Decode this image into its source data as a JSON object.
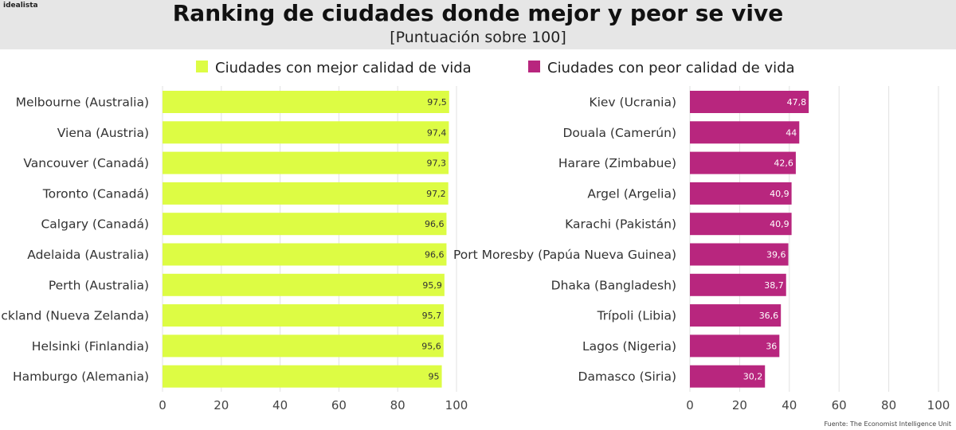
{
  "brand": "idealista",
  "title": "Ranking de ciudades donde mejor y peor se vive",
  "subtitle": "[Puntuación sobre 100]",
  "source": "Fuente: The Economist Intelligence Unit",
  "chart_data": [
    {
      "type": "bar",
      "orientation": "horizontal",
      "legend": "Ciudades con mejor calidad de vida",
      "color": "#ddfc44",
      "label_color": "#333333",
      "categories": [
        "Melbourne (Australia)",
        "Viena (Austria)",
        "Vancouver (Canadá)",
        "Toronto (Canadá)",
        "Calgary (Canadá)",
        "Adelaida (Australia)",
        "Perth (Australia)",
        "Auckland (Nueva Zelanda)",
        "Helsinki (Finlandia)",
        "Hamburgo (Alemania)"
      ],
      "values": [
        97.5,
        97.4,
        97.3,
        97.2,
        96.6,
        96.6,
        95.9,
        95.7,
        95.6,
        95
      ],
      "value_labels": [
        "97,5",
        "97,4",
        "97,3",
        "97,2",
        "96,6",
        "96,6",
        "95,9",
        "95,7",
        "95,6",
        "95"
      ],
      "xlim": [
        0,
        100
      ],
      "xticks": [
        0,
        20,
        40,
        60,
        80,
        100
      ],
      "grid": true
    },
    {
      "type": "bar",
      "orientation": "horizontal",
      "legend": "Ciudades con peor calidad de vida",
      "color": "#b8267e",
      "label_color": "#ffffff",
      "categories": [
        "Kiev (Ucrania)",
        "Douala (Camerún)",
        "Harare (Zimbabue)",
        "Argel (Argelia)",
        "Karachi (Pakistán)",
        "Port Moresby (Papúa Nueva Guinea)",
        "Dhaka (Bangladesh)",
        "Trípoli (Libia)",
        "Lagos (Nigeria)",
        "Damasco (Siria)"
      ],
      "values": [
        47.8,
        44,
        42.6,
        40.9,
        40.9,
        39.6,
        38.7,
        36.6,
        36,
        30.2
      ],
      "value_labels": [
        "47,8",
        "44",
        "42,6",
        "40,9",
        "40,9",
        "39,6",
        "38,7",
        "36,6",
        "36",
        "30,2"
      ],
      "xlim": [
        0,
        100
      ],
      "xticks": [
        0,
        20,
        40,
        60,
        80,
        100
      ],
      "grid": true
    }
  ]
}
